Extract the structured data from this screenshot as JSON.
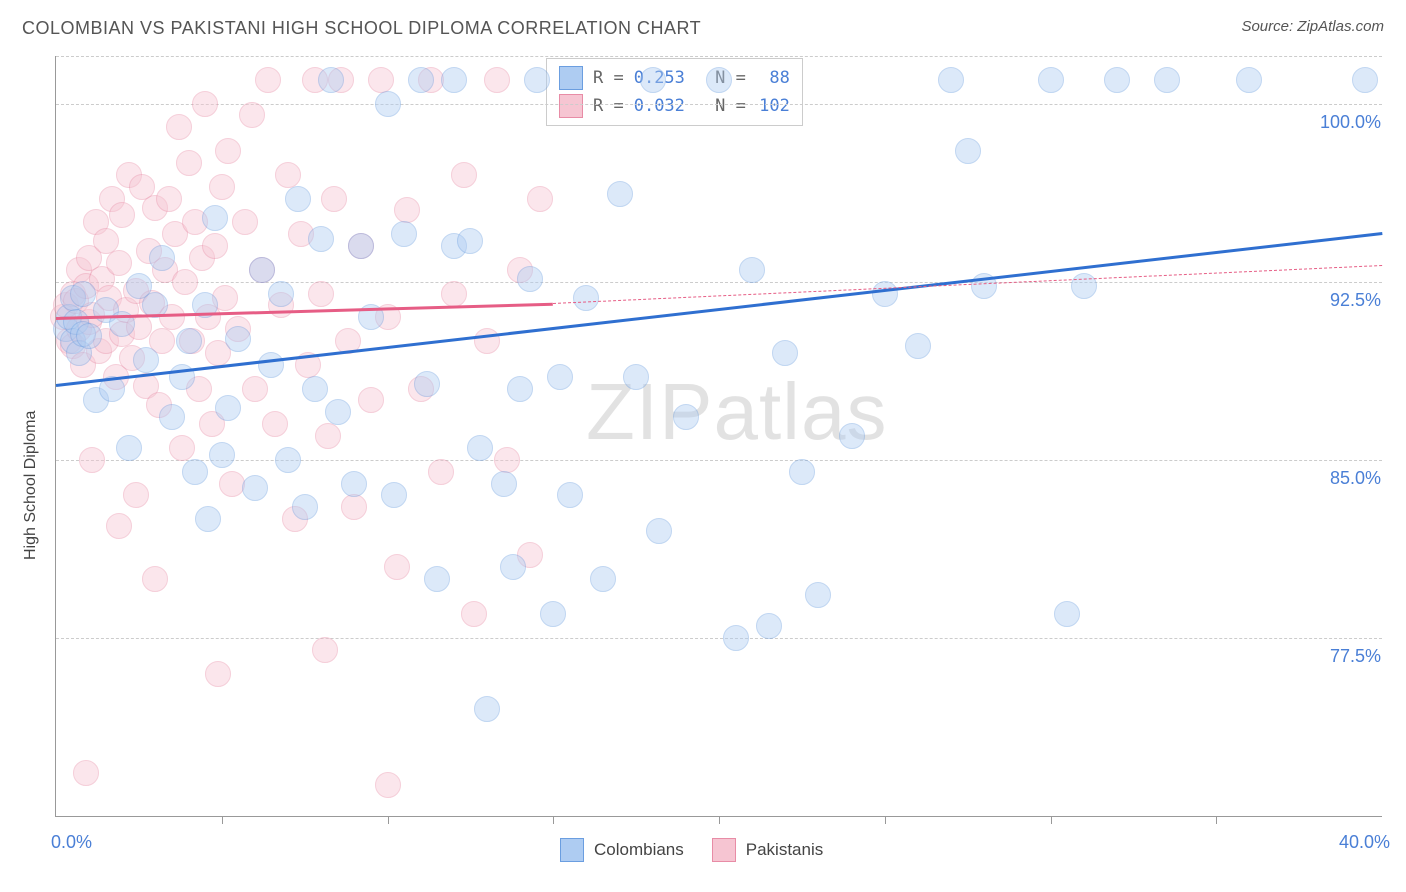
{
  "title": "COLOMBIAN VS PAKISTANI HIGH SCHOOL DIPLOMA CORRELATION CHART",
  "source": "Source: ZipAtlas.com",
  "ylabel": "High School Diploma",
  "watermark": {
    "part1": "ZIP",
    "part2": "atlas"
  },
  "chart": {
    "type": "scatter",
    "background_color": "#ffffff",
    "grid_color": "#cccccc",
    "axis_color": "#999999",
    "xlim": [
      0,
      40
    ],
    "ylim": [
      70,
      102
    ],
    "x_ticks_minor": [
      5,
      10,
      15,
      20,
      25,
      30,
      35
    ],
    "x_tick_labels": [
      {
        "x": 0,
        "label": "0.0%"
      },
      {
        "x": 40,
        "label": "40.0%"
      }
    ],
    "y_tick_labels": [
      {
        "y": 77.5,
        "label": "77.5%"
      },
      {
        "y": 85.0,
        "label": "85.0%"
      },
      {
        "y": 92.5,
        "label": "92.5%"
      },
      {
        "y": 100.0,
        "label": "100.0%"
      }
    ],
    "marker_radius": 12,
    "marker_opacity": 0.42,
    "series": [
      {
        "name": "Colombians",
        "fill": "#aeccf2",
        "stroke": "#6b9ee0",
        "line_color": "#2f6fd0",
        "line_width": 3,
        "R": "0.253",
        "N": "88",
        "trend": {
          "x1": 0,
          "y1": 88.2,
          "x2": 40,
          "y2": 94.6
        },
        "points": [
          [
            0.3,
            90.5
          ],
          [
            0.4,
            91.0
          ],
          [
            0.5,
            91.8
          ],
          [
            0.5,
            90.0
          ],
          [
            0.6,
            90.8
          ],
          [
            0.7,
            89.5
          ],
          [
            0.8,
            92.0
          ],
          [
            0.8,
            90.3
          ],
          [
            1.0,
            90.2
          ],
          [
            1.2,
            87.5
          ],
          [
            1.5,
            91.3
          ],
          [
            1.7,
            88.0
          ],
          [
            2.0,
            90.7
          ],
          [
            2.2,
            85.5
          ],
          [
            2.5,
            92.3
          ],
          [
            2.7,
            89.2
          ],
          [
            3.0,
            91.5
          ],
          [
            3.2,
            93.5
          ],
          [
            3.5,
            86.8
          ],
          [
            3.8,
            88.5
          ],
          [
            4.0,
            90.0
          ],
          [
            4.2,
            84.5
          ],
          [
            4.5,
            91.5
          ],
          [
            4.8,
            95.2
          ],
          [
            5.0,
            85.2
          ],
          [
            5.2,
            87.2
          ],
          [
            5.5,
            90.1
          ],
          [
            6.0,
            83.8
          ],
          [
            6.2,
            93.0
          ],
          [
            6.5,
            89.0
          ],
          [
            6.8,
            92.0
          ],
          [
            7.0,
            85.0
          ],
          [
            7.3,
            96.0
          ],
          [
            7.5,
            83.0
          ],
          [
            7.8,
            88.0
          ],
          [
            8.0,
            94.3
          ],
          [
            8.3,
            101.0
          ],
          [
            8.5,
            87.0
          ],
          [
            9.0,
            84.0
          ],
          [
            9.2,
            94.0
          ],
          [
            9.5,
            91.0
          ],
          [
            10.0,
            100.0
          ],
          [
            10.2,
            83.5
          ],
          [
            10.5,
            94.5
          ],
          [
            11.0,
            101.0
          ],
          [
            11.2,
            88.2
          ],
          [
            11.5,
            80.0
          ],
          [
            12.0,
            94.0
          ],
          [
            12.0,
            101.0
          ],
          [
            12.5,
            94.2
          ],
          [
            12.8,
            85.5
          ],
          [
            13.0,
            74.5
          ],
          [
            13.5,
            84.0
          ],
          [
            13.8,
            80.5
          ],
          [
            14.0,
            88.0
          ],
          [
            14.3,
            92.6
          ],
          [
            14.5,
            101.0
          ],
          [
            15.0,
            78.5
          ],
          [
            15.2,
            88.5
          ],
          [
            15.5,
            83.5
          ],
          [
            16.0,
            91.8
          ],
          [
            16.5,
            80.0
          ],
          [
            17.0,
            96.2
          ],
          [
            17.5,
            88.5
          ],
          [
            18.0,
            101.0
          ],
          [
            18.2,
            82.0
          ],
          [
            19.0,
            86.8
          ],
          [
            20.0,
            101.0
          ],
          [
            20.5,
            77.5
          ],
          [
            21.0,
            93.0
          ],
          [
            22.0,
            89.5
          ],
          [
            22.5,
            84.5
          ],
          [
            23.0,
            79.3
          ],
          [
            24.0,
            86.0
          ],
          [
            25.0,
            92.0
          ],
          [
            26.0,
            89.8
          ],
          [
            27.0,
            101.0
          ],
          [
            27.5,
            98.0
          ],
          [
            28.0,
            92.3
          ],
          [
            30.0,
            101.0
          ],
          [
            30.5,
            78.5
          ],
          [
            31.0,
            92.3
          ],
          [
            32.0,
            101.0
          ],
          [
            33.5,
            101.0
          ],
          [
            36.0,
            101.0
          ],
          [
            39.5,
            101.0
          ],
          [
            21.5,
            78.0
          ],
          [
            4.6,
            82.5
          ]
        ]
      },
      {
        "name": "Pakistanis",
        "fill": "#f6c5d2",
        "stroke": "#e88ca6",
        "line_color": "#e65d85",
        "line_width": 3,
        "R": "0.032",
        "N": "102",
        "trend_solid": {
          "x1": 0,
          "y1": 91.0,
          "x2": 15,
          "y2": 91.6
        },
        "trend_dash": {
          "x1": 15,
          "y1": 91.6,
          "x2": 40,
          "y2": 93.2
        },
        "points": [
          [
            0.2,
            91.0
          ],
          [
            0.3,
            91.5
          ],
          [
            0.4,
            90.0
          ],
          [
            0.5,
            92.0
          ],
          [
            0.5,
            89.8
          ],
          [
            0.6,
            91.7
          ],
          [
            0.7,
            90.5
          ],
          [
            0.7,
            93.0
          ],
          [
            0.8,
            89.0
          ],
          [
            0.9,
            92.3
          ],
          [
            1.0,
            90.8
          ],
          [
            1.0,
            93.5
          ],
          [
            1.1,
            91.1
          ],
          [
            1.2,
            95.0
          ],
          [
            1.3,
            89.6
          ],
          [
            1.4,
            92.6
          ],
          [
            1.5,
            94.2
          ],
          [
            1.5,
            90.0
          ],
          [
            1.6,
            91.8
          ],
          [
            1.7,
            96.0
          ],
          [
            1.8,
            88.5
          ],
          [
            1.9,
            93.3
          ],
          [
            2.0,
            90.3
          ],
          [
            2.0,
            95.3
          ],
          [
            2.1,
            91.3
          ],
          [
            2.2,
            97.0
          ],
          [
            2.3,
            89.3
          ],
          [
            2.4,
            92.1
          ],
          [
            2.5,
            90.6
          ],
          [
            2.6,
            96.5
          ],
          [
            2.7,
            88.1
          ],
          [
            2.8,
            93.8
          ],
          [
            2.9,
            91.6
          ],
          [
            3.0,
            95.6
          ],
          [
            3.1,
            87.3
          ],
          [
            3.2,
            90.0
          ],
          [
            3.3,
            93.0
          ],
          [
            3.4,
            96.0
          ],
          [
            3.5,
            91.0
          ],
          [
            3.6,
            94.5
          ],
          [
            3.7,
            99.0
          ],
          [
            3.8,
            85.5
          ],
          [
            3.9,
            92.5
          ],
          [
            4.0,
            97.5
          ],
          [
            4.1,
            90.0
          ],
          [
            4.2,
            95.0
          ],
          [
            4.3,
            88.0
          ],
          [
            4.4,
            93.5
          ],
          [
            4.5,
            100.0
          ],
          [
            4.6,
            91.0
          ],
          [
            4.7,
            86.5
          ],
          [
            4.8,
            94.0
          ],
          [
            4.9,
            89.5
          ],
          [
            5.0,
            96.5
          ],
          [
            5.1,
            91.8
          ],
          [
            5.2,
            98.0
          ],
          [
            5.3,
            84.0
          ],
          [
            5.5,
            90.5
          ],
          [
            5.7,
            95.0
          ],
          [
            5.9,
            99.5
          ],
          [
            6.0,
            88.0
          ],
          [
            6.2,
            93.0
          ],
          [
            6.4,
            101.0
          ],
          [
            6.6,
            86.5
          ],
          [
            6.8,
            91.5
          ],
          [
            7.0,
            97.0
          ],
          [
            7.2,
            82.5
          ],
          [
            7.4,
            94.5
          ],
          [
            7.6,
            89.0
          ],
          [
            7.8,
            101.0
          ],
          [
            8.0,
            92.0
          ],
          [
            8.2,
            86.0
          ],
          [
            8.4,
            96.0
          ],
          [
            8.6,
            101.0
          ],
          [
            8.8,
            90.0
          ],
          [
            9.0,
            83.0
          ],
          [
            9.2,
            94.0
          ],
          [
            9.5,
            87.5
          ],
          [
            9.8,
            101.0
          ],
          [
            10.0,
            91.0
          ],
          [
            10.3,
            80.5
          ],
          [
            10.6,
            95.5
          ],
          [
            11.0,
            88.0
          ],
          [
            11.3,
            101.0
          ],
          [
            11.6,
            84.5
          ],
          [
            12.0,
            92.0
          ],
          [
            12.3,
            97.0
          ],
          [
            12.6,
            78.5
          ],
          [
            13.0,
            90.0
          ],
          [
            13.3,
            101.0
          ],
          [
            13.6,
            85.0
          ],
          [
            14.0,
            93.0
          ],
          [
            14.3,
            81.0
          ],
          [
            14.6,
            96.0
          ],
          [
            1.9,
            82.2
          ],
          [
            3.0,
            80.0
          ],
          [
            1.1,
            85.0
          ],
          [
            2.4,
            83.5
          ],
          [
            0.9,
            71.8
          ],
          [
            8.1,
            77.0
          ],
          [
            10.0,
            71.3
          ],
          [
            4.9,
            76.0
          ]
        ]
      }
    ]
  },
  "legend_top": {
    "R_label": "R =",
    "N_label": "N ="
  },
  "legend_bottom": [
    {
      "label": "Colombians",
      "fill": "#aeccf2",
      "stroke": "#6b9ee0"
    },
    {
      "label": "Pakistanis",
      "fill": "#f6c5d2",
      "stroke": "#e88ca6"
    }
  ],
  "colors": {
    "title": "#555555",
    "tick_label": "#4a7fd6",
    "axis_label": "#444444"
  }
}
